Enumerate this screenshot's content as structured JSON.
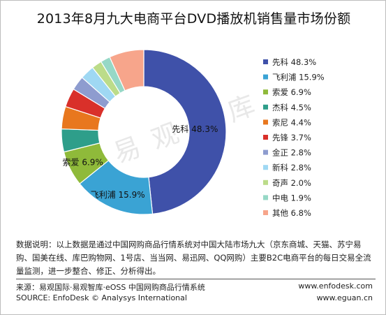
{
  "title": "2013年8月九大电商平台DVD播放机销售量市场份额",
  "watermark": "易观智库",
  "note": "数据说明：以上数据是通过中国网购商品行情系统对中国大陆市场九大（京东商城、天猫、苏宁易购、国美在线、库巴购物网、1号店、当当网、易迅网、QQ网购）主要B2C电商平台的每日交易全流量监测，进一步整合、修正、分析得出。",
  "source_cn": "来源：易观国际·易观智库·eOSS 中国网购商品行情系统",
  "source_en": "SOURCE: EnfoDesk © Analysys International",
  "url1": "www.enfodesk.com",
  "url2": "www.eguan.cn",
  "chart_data": {
    "type": "pie",
    "title": "2013年8月九大电商平台DVD播放机销售量市场份额",
    "legend_position": "right",
    "slices": [
      {
        "label": "先科",
        "value": 48.3,
        "value_label": "48.3%",
        "color": "#3f51a9",
        "shown_on_chart": true
      },
      {
        "label": "飞利浦",
        "value": 15.9,
        "value_label": "15.9%",
        "color": "#3aa3d4",
        "shown_on_chart": true
      },
      {
        "label": "索爱",
        "value": 6.9,
        "value_label": "6.9%",
        "color": "#8fba3a",
        "shown_on_chart": true
      },
      {
        "label": "杰科",
        "value": 4.5,
        "value_label": "4.5%",
        "color": "#2e9e8a",
        "shown_on_chart": false
      },
      {
        "label": "索尼",
        "value": 4.4,
        "value_label": "4.4%",
        "color": "#e8771e",
        "shown_on_chart": false
      },
      {
        "label": "先锋",
        "value": 3.7,
        "value_label": "3.7%",
        "color": "#d9302a",
        "shown_on_chart": false
      },
      {
        "label": "金正",
        "value": 2.8,
        "value_label": "2.8%",
        "color": "#8e9ccf",
        "shown_on_chart": false
      },
      {
        "label": "新科",
        "value": 2.8,
        "value_label": "2.8%",
        "color": "#9fd8f3",
        "shown_on_chart": false
      },
      {
        "label": "奇声",
        "value": 2.0,
        "value_label": "2.0%",
        "color": "#bcdc89",
        "shown_on_chart": false
      },
      {
        "label": "中电",
        "value": 1.9,
        "value_label": "1.9%",
        "color": "#96d8c6",
        "shown_on_chart": false
      },
      {
        "label": "其他",
        "value": 6.8,
        "value_label": "6.8%",
        "color": "#f7a58b",
        "shown_on_chart": false
      }
    ]
  }
}
